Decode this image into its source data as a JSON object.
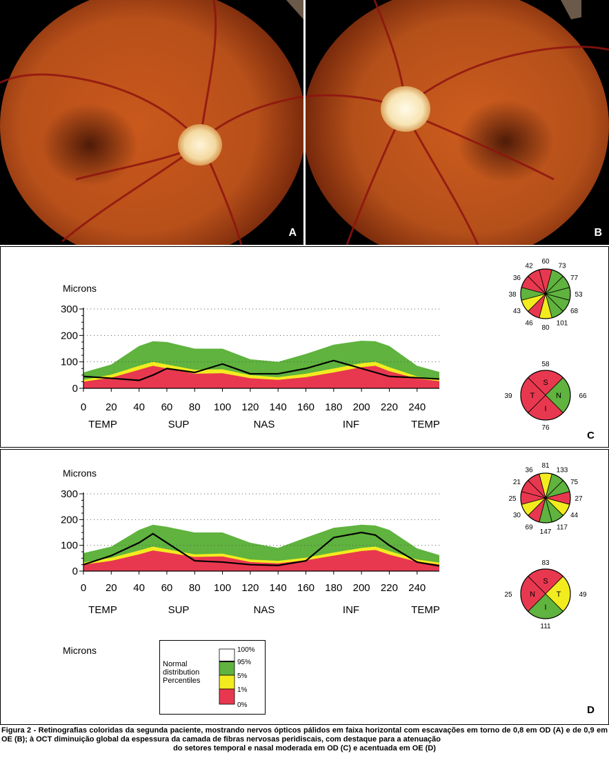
{
  "photos": [
    {
      "label": "A",
      "side": "right"
    },
    {
      "label": "B",
      "side": "left"
    }
  ],
  "panels": [
    {
      "label": "C",
      "ylabel": "Microns",
      "yticks": [
        0,
        100,
        200,
        300
      ],
      "xticks": [
        0,
        20,
        40,
        60,
        80,
        100,
        120,
        140,
        160,
        180,
        200,
        220,
        240
      ],
      "regions": [
        "TEMP",
        "SUP",
        "NAS",
        "INF",
        "TEMP"
      ],
      "clock": {
        "values": [
          "60",
          "73",
          "77",
          "53",
          "68",
          "101",
          "80",
          "46",
          "43",
          "38",
          "36",
          "42"
        ],
        "colors": [
          "#e8384f",
          "#5fb33e",
          "#5fb33e",
          "#5fb33e",
          "#5fb33e",
          "#5fb33e",
          "#f2ec1f",
          "#e8384f",
          "#f2ec1f",
          "#5fb33e",
          "#e8384f",
          "#e8384f"
        ]
      },
      "quadrants": {
        "letters": [
          "S",
          "N",
          "I",
          "T"
        ],
        "values": [
          "58",
          "66",
          "76",
          "39"
        ],
        "colors": [
          "#e8384f",
          "#5fb33e",
          "#e8384f",
          "#e8384f"
        ]
      }
    },
    {
      "label": "D",
      "ylabel": "Microns",
      "yticks": [
        0,
        100,
        200,
        300
      ],
      "xticks": [
        0,
        20,
        40,
        60,
        80,
        100,
        120,
        140,
        160,
        180,
        200,
        220,
        240
      ],
      "regions": [
        "TEMP",
        "SUP",
        "NAS",
        "INF",
        "TEMP"
      ],
      "clock": {
        "values": [
          "81",
          "133",
          "75",
          "27",
          "44",
          "117",
          "147",
          "69",
          "30",
          "25",
          "21",
          "36"
        ],
        "colors": [
          "#f2ec1f",
          "#5fb33e",
          "#5fb33e",
          "#e8384f",
          "#f2ec1f",
          "#5fb33e",
          "#5fb33e",
          "#e8384f",
          "#f2ec1f",
          "#e8384f",
          "#e8384f",
          "#e8384f"
        ]
      },
      "quadrants": {
        "letters": [
          "S",
          "T",
          "I",
          "N"
        ],
        "values": [
          "83",
          "49",
          "111",
          "25"
        ],
        "colors": [
          "#e8384f",
          "#f2ec1f",
          "#5fb33e",
          "#e8384f"
        ]
      }
    }
  ],
  "legend": {
    "title": "Microns",
    "text_lines": [
      "Normal",
      "distribution",
      "Percentiles"
    ],
    "percentiles": [
      "100%",
      "95%",
      "5%",
      "1%",
      "0%"
    ],
    "colors": [
      "#ffffff",
      "#5fb33e",
      "#f2ec1f",
      "#e8384f"
    ]
  },
  "caption": {
    "main": "Figura 2 - Retinografias coloridas da segunda paciente, mostrando nervos ópticos pálidos em faixa horizontal com escavações em torno de 0,8 em OD (A) e de 0,9 em OE (B); à OCT diminuição global da espessura da camada de fibras nervosas peridiscais, com destaque para a atenuação",
    "last": "do setores temporal e nasal moderada em OD (C) e acentuada em OE (D)"
  },
  "chart_data": [
    {
      "type": "area",
      "panel": "C",
      "ylabel": "Microns",
      "ylim": [
        0,
        300
      ],
      "xlim": [
        0,
        256
      ],
      "x": [
        0,
        20,
        40,
        50,
        60,
        80,
        100,
        120,
        140,
        160,
        180,
        200,
        210,
        220,
        240,
        256
      ],
      "series": [
        {
          "name": "95%",
          "values": [
            60,
            90,
            160,
            178,
            175,
            150,
            150,
            110,
            100,
            130,
            165,
            180,
            178,
            160,
            85,
            62
          ]
        },
        {
          "name": "5%",
          "values": [
            32,
            52,
            85,
            100,
            90,
            70,
            72,
            50,
            42,
            55,
            75,
            95,
            100,
            80,
            45,
            33
          ]
        },
        {
          "name": "1%",
          "values": [
            25,
            40,
            70,
            85,
            75,
            55,
            57,
            38,
            32,
            42,
            60,
            80,
            85,
            65,
            37,
            27
          ]
        },
        {
          "name": "OD",
          "values": [
            45,
            38,
            30,
            50,
            75,
            60,
            92,
            55,
            55,
            75,
            105,
            75,
            60,
            45,
            40,
            35
          ]
        }
      ]
    },
    {
      "type": "area",
      "panel": "D",
      "ylabel": "Microns",
      "ylim": [
        0,
        300
      ],
      "xlim": [
        0,
        256
      ],
      "x": [
        0,
        20,
        40,
        50,
        60,
        80,
        100,
        120,
        140,
        160,
        180,
        200,
        210,
        220,
        240,
        256
      ],
      "series": [
        {
          "name": "95%",
          "values": [
            70,
            95,
            160,
            180,
            172,
            150,
            150,
            110,
            90,
            130,
            168,
            180,
            177,
            160,
            88,
            62
          ]
        },
        {
          "name": "5%",
          "values": [
            33,
            52,
            80,
            95,
            85,
            65,
            68,
            45,
            40,
            52,
            72,
            90,
            95,
            78,
            45,
            33
          ]
        },
        {
          "name": "1%",
          "values": [
            25,
            40,
            65,
            80,
            72,
            55,
            57,
            35,
            30,
            42,
            60,
            78,
            82,
            64,
            36,
            26
          ]
        },
        {
          "name": "OE",
          "values": [
            25,
            60,
            110,
            145,
            110,
            40,
            35,
            25,
            22,
            40,
            130,
            150,
            140,
            100,
            35,
            20
          ]
        }
      ]
    }
  ]
}
